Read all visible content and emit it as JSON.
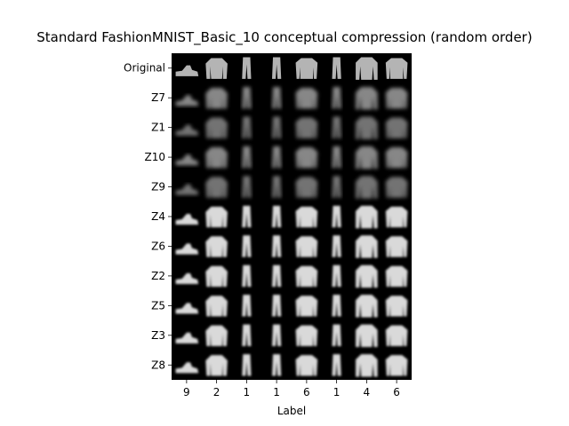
{
  "chart_data": {
    "type": "heatmap",
    "title": "Standard FashionMNIST_Basic_10 conceptual compression (random order)",
    "xlabel": "Label",
    "ylabel": "",
    "row_labels": [
      "Original",
      "Z7",
      "Z1",
      "Z10",
      "Z9",
      "Z4",
      "Z6",
      "Z2",
      "Z5",
      "Z3",
      "Z8"
    ],
    "column_labels": [
      "9",
      "2",
      "1",
      "1",
      "6",
      "1",
      "4",
      "6"
    ],
    "column_items": [
      "ankle-boot",
      "pullover",
      "trousers",
      "trousers",
      "shirt",
      "trousers",
      "coat",
      "shirt"
    ],
    "grid": false,
    "colors": {
      "background": "#000000",
      "foreground": "#ffffff",
      "original_gray": "#b4b4b4"
    }
  }
}
